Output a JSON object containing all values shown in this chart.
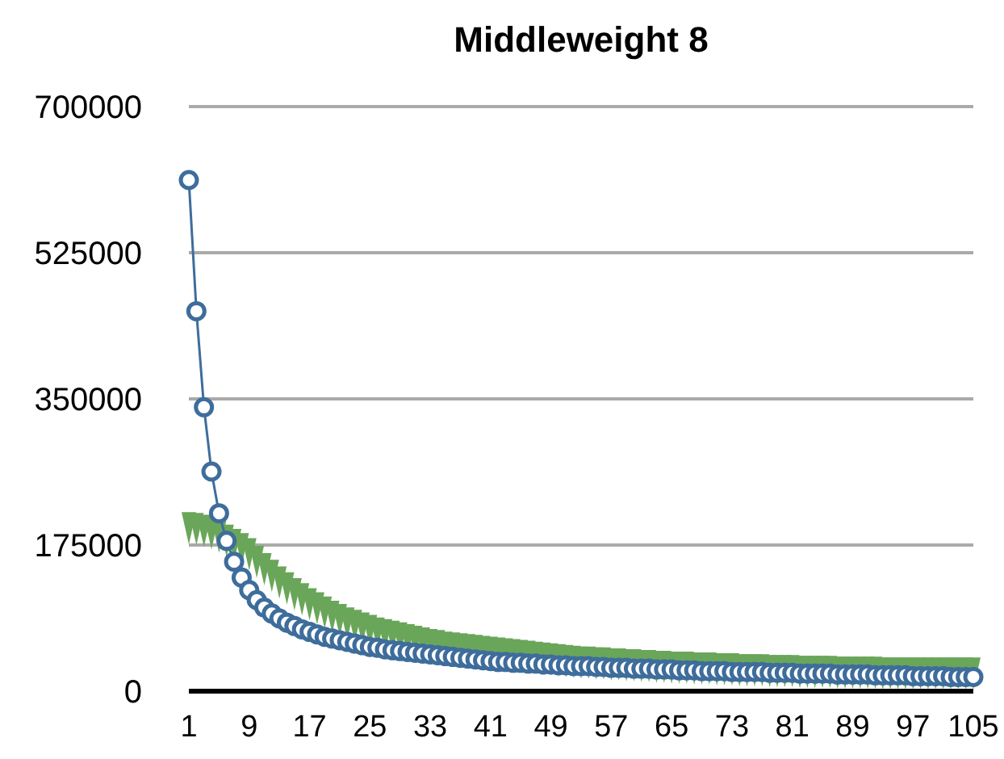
{
  "chart_data": {
    "type": "line",
    "title": "Middleweight 8",
    "categories": [
      "1",
      null,
      null,
      null,
      null,
      null,
      null,
      null,
      "9",
      null,
      null,
      null,
      null,
      null,
      null,
      null,
      "17",
      null,
      null,
      null,
      null,
      null,
      null,
      null,
      "25",
      null,
      null,
      null,
      null,
      null,
      null,
      null,
      "33",
      null,
      null,
      null,
      null,
      null,
      null,
      null,
      "41",
      null,
      null,
      null,
      null,
      null,
      null,
      null,
      "49",
      null,
      null,
      null,
      null,
      null,
      null,
      null,
      "57",
      null,
      null,
      null,
      null,
      null,
      null,
      null,
      "65",
      null,
      null,
      null,
      null,
      null,
      null,
      null,
      "73",
      null,
      null,
      null,
      null,
      null,
      null,
      null,
      "81",
      null,
      null,
      null,
      null,
      null,
      null,
      null,
      "89",
      null,
      null,
      null,
      null,
      null,
      null,
      null,
      "97",
      null,
      null,
      null,
      null,
      null,
      null,
      null,
      "105"
    ],
    "series": [
      {
        "type": "scatter",
        "marker": "triangle",
        "color": "#6aa65a",
        "values": [
          195000,
          194000,
          192000,
          189000,
          185000,
          180000,
          175000,
          170000,
          164000,
          155000,
          146000,
          138000,
          130000,
          123000,
          116000,
          110000,
          104000,
          99000,
          94000,
          89000,
          85000,
          81000,
          78000,
          75000,
          72000,
          69000,
          67000,
          65000,
          63000,
          61000,
          59000,
          57000,
          55000,
          54000,
          52000,
          51000,
          50000,
          49000,
          48000,
          47000,
          46000,
          45000,
          44000,
          43000,
          42000,
          41000,
          40000,
          39000,
          38000,
          37000,
          36000,
          35000,
          34000,
          34000,
          33000,
          33000,
          32000,
          32000,
          31000,
          31000,
          30000,
          30000,
          29000,
          29000,
          28000,
          28000,
          28000,
          27000,
          27000,
          27000,
          26000,
          26000,
          26000,
          25000,
          25000,
          25000,
          25000,
          24000,
          24000,
          24000,
          24000,
          23000,
          23000,
          23000,
          23000,
          23000,
          22000,
          22000,
          22000,
          22000,
          22000,
          22000,
          21000,
          21000,
          21000,
          21000,
          21000,
          21000,
          21000,
          21000,
          21000,
          21000,
          21000,
          21000,
          21000
        ]
      },
      {
        "type": "line",
        "marker": "circle",
        "color": "#3e6d9c",
        "values": [
          612000,
          455000,
          340000,
          263000,
          213000,
          180000,
          155000,
          136000,
          121000,
          109000,
          100000,
          93000,
          87000,
          82000,
          78000,
          74000,
          71000,
          68000,
          65000,
          63000,
          61000,
          59000,
          57000,
          55000,
          53000,
          52000,
          50000,
          49000,
          48000,
          47000,
          46000,
          45000,
          44000,
          43000,
          42000,
          41000,
          40000,
          39000,
          38000,
          37000,
          36000,
          35000,
          35000,
          34000,
          34000,
          33000,
          33000,
          32000,
          32000,
          31000,
          31000,
          30000,
          30000,
          30000,
          29000,
          29000,
          28000,
          28000,
          28000,
          27000,
          27000,
          27000,
          26000,
          26000,
          26000,
          25000,
          25000,
          25000,
          24000,
          24000,
          24000,
          24000,
          23000,
          23000,
          23000,
          23000,
          23000,
          22000,
          22000,
          22000,
          22000,
          21000,
          21000,
          21000,
          21000,
          21000,
          20000,
          20000,
          20000,
          20000,
          20000,
          19000,
          19000,
          19000,
          19000,
          19000,
          18000,
          18000,
          18000,
          18000,
          18000,
          17000,
          17000,
          17000,
          17000
        ]
      }
    ],
    "ylim": [
      0,
      700000
    ],
    "yticks": [
      0,
      175000,
      350000,
      525000,
      700000
    ],
    "grid": "y"
  }
}
